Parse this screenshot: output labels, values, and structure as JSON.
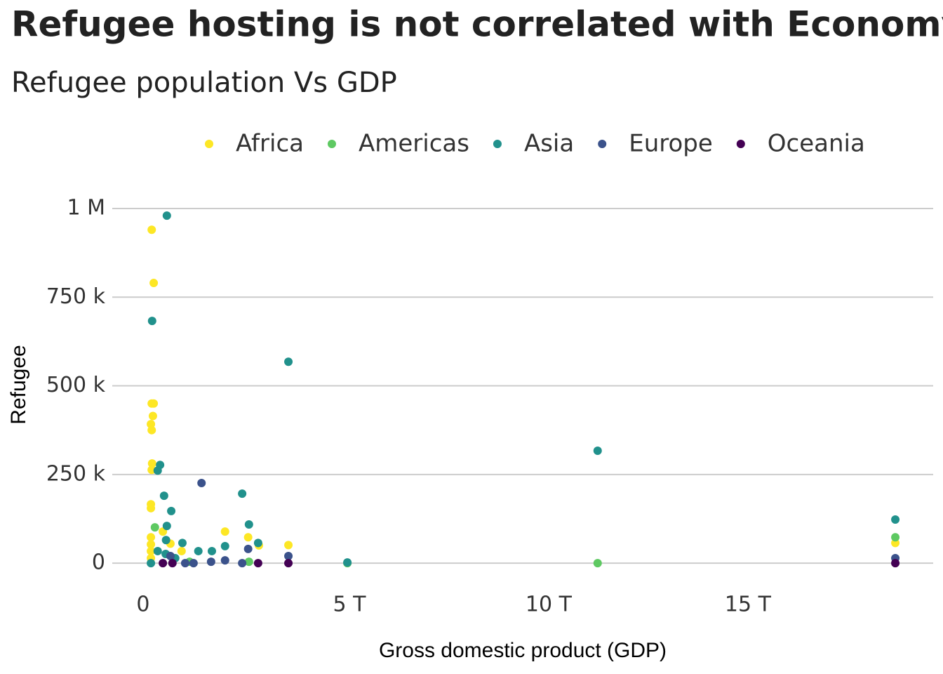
{
  "chart_data": {
    "type": "scatter",
    "title": "Refugee hosting is not correlated with Economy",
    "subtitle": "Refugee population Vs GDP",
    "x_label": "Gross domestic product (GDP)",
    "y_label": "Refugee",
    "legend": "top",
    "grid": "y",
    "xlim": [
      -950000000000.0,
      19650000000000.0
    ],
    "ylim": [
      -75000,
      1093000
    ],
    "xticks": [
      0,
      {
        "value": 5000000000000.0,
        "label": "5 T"
      },
      {
        "value": 10000000000000.0,
        "label": "10 T"
      },
      {
        "value": 15000000000000.0,
        "label": "15 T"
      }
    ],
    "yticks": [
      0,
      {
        "value": 250000,
        "label": "250 k"
      },
      {
        "value": 500000,
        "label": "500 k"
      },
      {
        "value": 750000,
        "label": "750 k"
      },
      {
        "value": 1000000,
        "label": "1 M"
      }
    ],
    "series": [
      {
        "name": "Africa",
        "color": "#fde725",
        "x": [
          40000000000.0,
          90000000000.0,
          40000000000.0,
          90000000000.0,
          70000000000.0,
          20000000000.0,
          40000000000.0,
          50000000000.0,
          40000000000.0,
          20000000000.0,
          20000000000.0,
          20000000000.0,
          20000000000.0,
          20000000000.0,
          20000000000.0,
          320000000000.0,
          510000000000.0,
          790000000000.0,
          1880000000000.0,
          2460000000000.0,
          2730000000000.0,
          3470000000000.0,
          18700000000000.0
        ],
        "values": [
          940000,
          790000,
          450000,
          450000,
          415000,
          392000,
          375000,
          281000,
          263000,
          166000,
          155000,
          73000,
          53000,
          34000,
          14000,
          89000,
          55000,
          34000,
          89000,
          73000,
          50000,
          51000,
          57000
        ]
      },
      {
        "name": "Americas",
        "color": "#5ec962",
        "x": [
          120000000000.0,
          2480000000000.0,
          4950000000000.0,
          11230000000000.0,
          18700000000000.0,
          990000000000.0
        ],
        "values": [
          101000,
          4000,
          0,
          0,
          73000,
          4000
        ]
      },
      {
        "name": "Asia",
        "color": "#21918c",
        "x": [
          420000000000.0,
          50000000000.0,
          3470000000000.0,
          11230000000000.0,
          250000000000.0,
          190000000000.0,
          2310000000000.0,
          350000000000.0,
          530000000000.0,
          420000000000.0,
          2480000000000.0,
          18700000000000.0,
          400000000000.0,
          810000000000.0,
          1880000000000.0,
          2710000000000.0,
          1210000000000.0,
          1550000000000.0,
          190000000000.0,
          390000000000.0,
          4950000000000.0,
          20000000000.0,
          630000000000.0
        ],
        "values": [
          980000,
          683000,
          568000,
          317000,
          277000,
          261000,
          196000,
          190000,
          147000,
          105000,
          109000,
          123000,
          65000,
          57000,
          48000,
          57000,
          34000,
          34000,
          34000,
          26000,
          2000,
          0,
          14000
        ]
      },
      {
        "name": "Europe",
        "color": "#3b528b",
        "x": [
          1290000000000.0,
          2460000000000.0,
          3470000000000.0,
          18700000000000.0,
          1880000000000.0,
          2310000000000.0,
          1090000000000.0,
          880000000000.0,
          1530000000000.0,
          510000000000.0
        ],
        "values": [
          226000,
          40000,
          20000,
          14000,
          8000,
          0,
          0,
          0,
          4000,
          20000
        ]
      },
      {
        "name": "Oceania",
        "color": "#440154",
        "x": [
          320000000000.0,
          560000000000.0,
          2710000000000.0,
          3470000000000.0,
          18700000000000.0
        ],
        "values": [
          0,
          0,
          0,
          0,
          0
        ]
      }
    ]
  }
}
